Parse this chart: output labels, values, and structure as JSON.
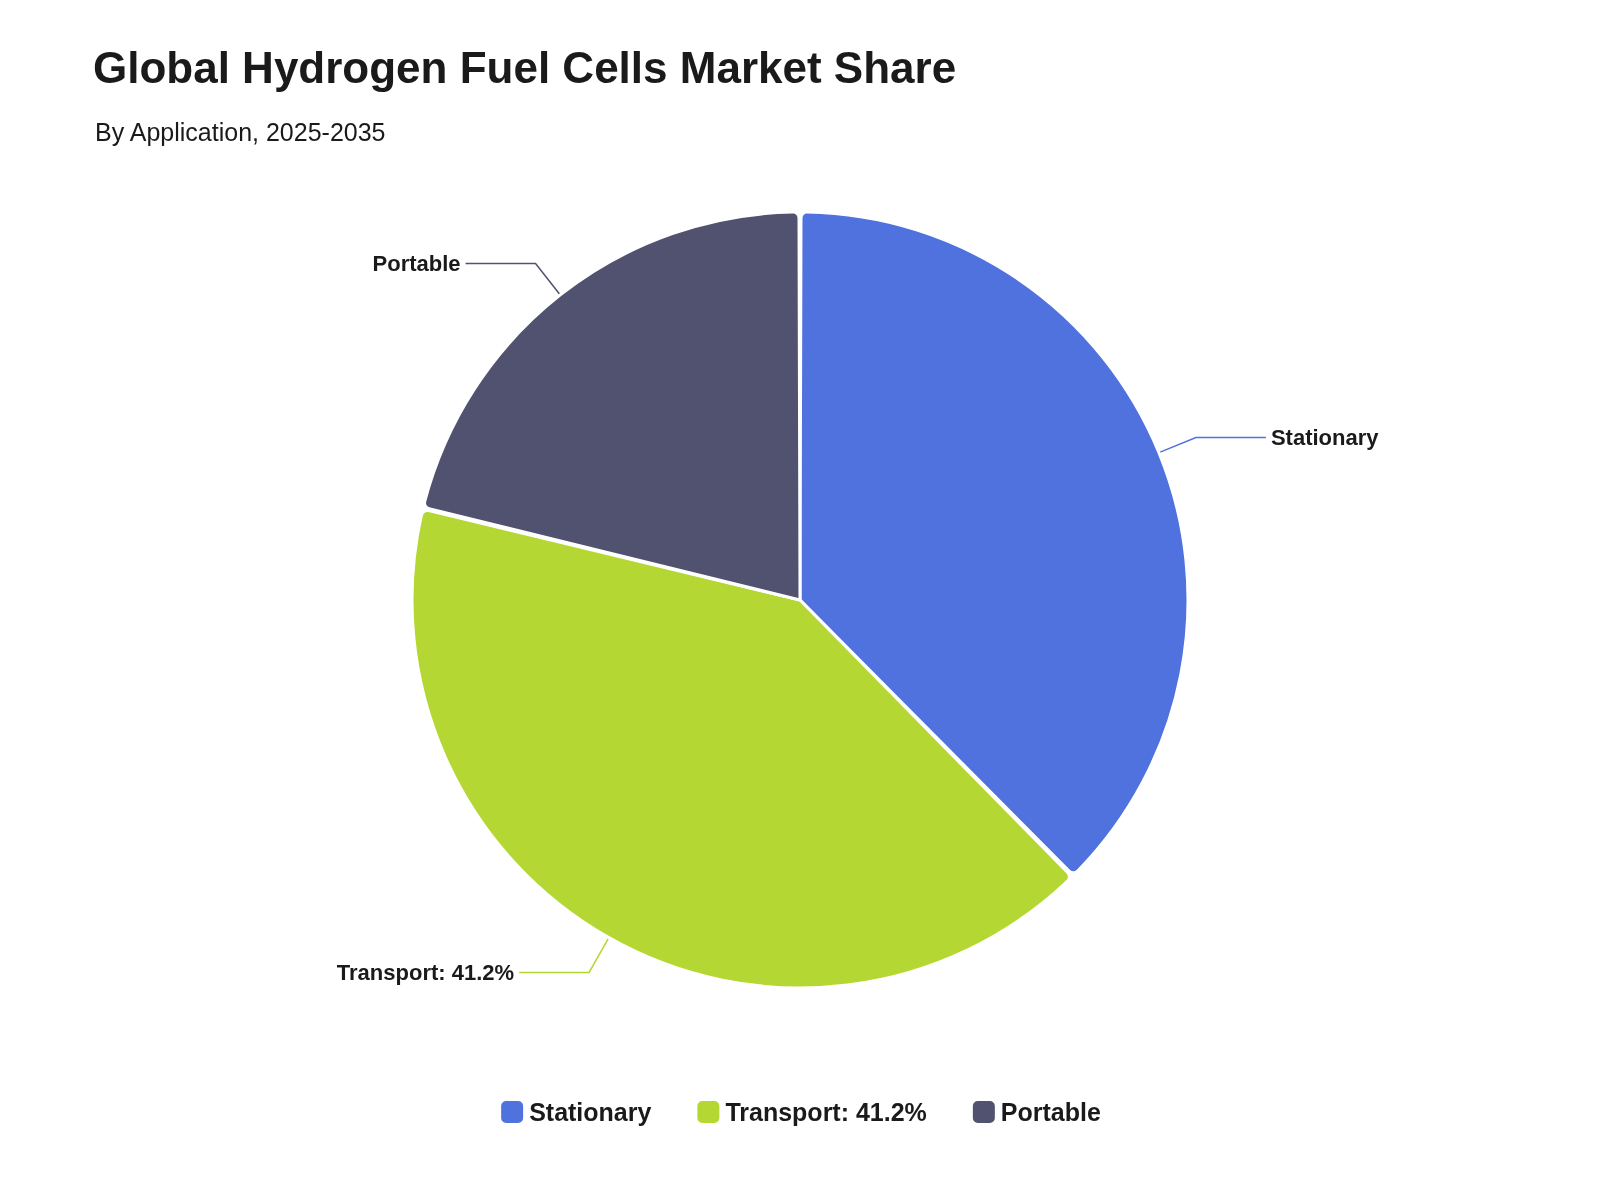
{
  "chart_data": {
    "type": "pie",
    "title": "Global Hydrogen Fuel Cells Market Share",
    "subtitle": "By Application, 2025-2035",
    "categories": [
      "Stationary",
      "Transport: 41.2%",
      "Portable"
    ],
    "values": [
      37.6,
      41.2,
      21.2
    ],
    "colors": [
      "#5072df",
      "#b5d733",
      "#505270"
    ],
    "legend": "bottom"
  }
}
